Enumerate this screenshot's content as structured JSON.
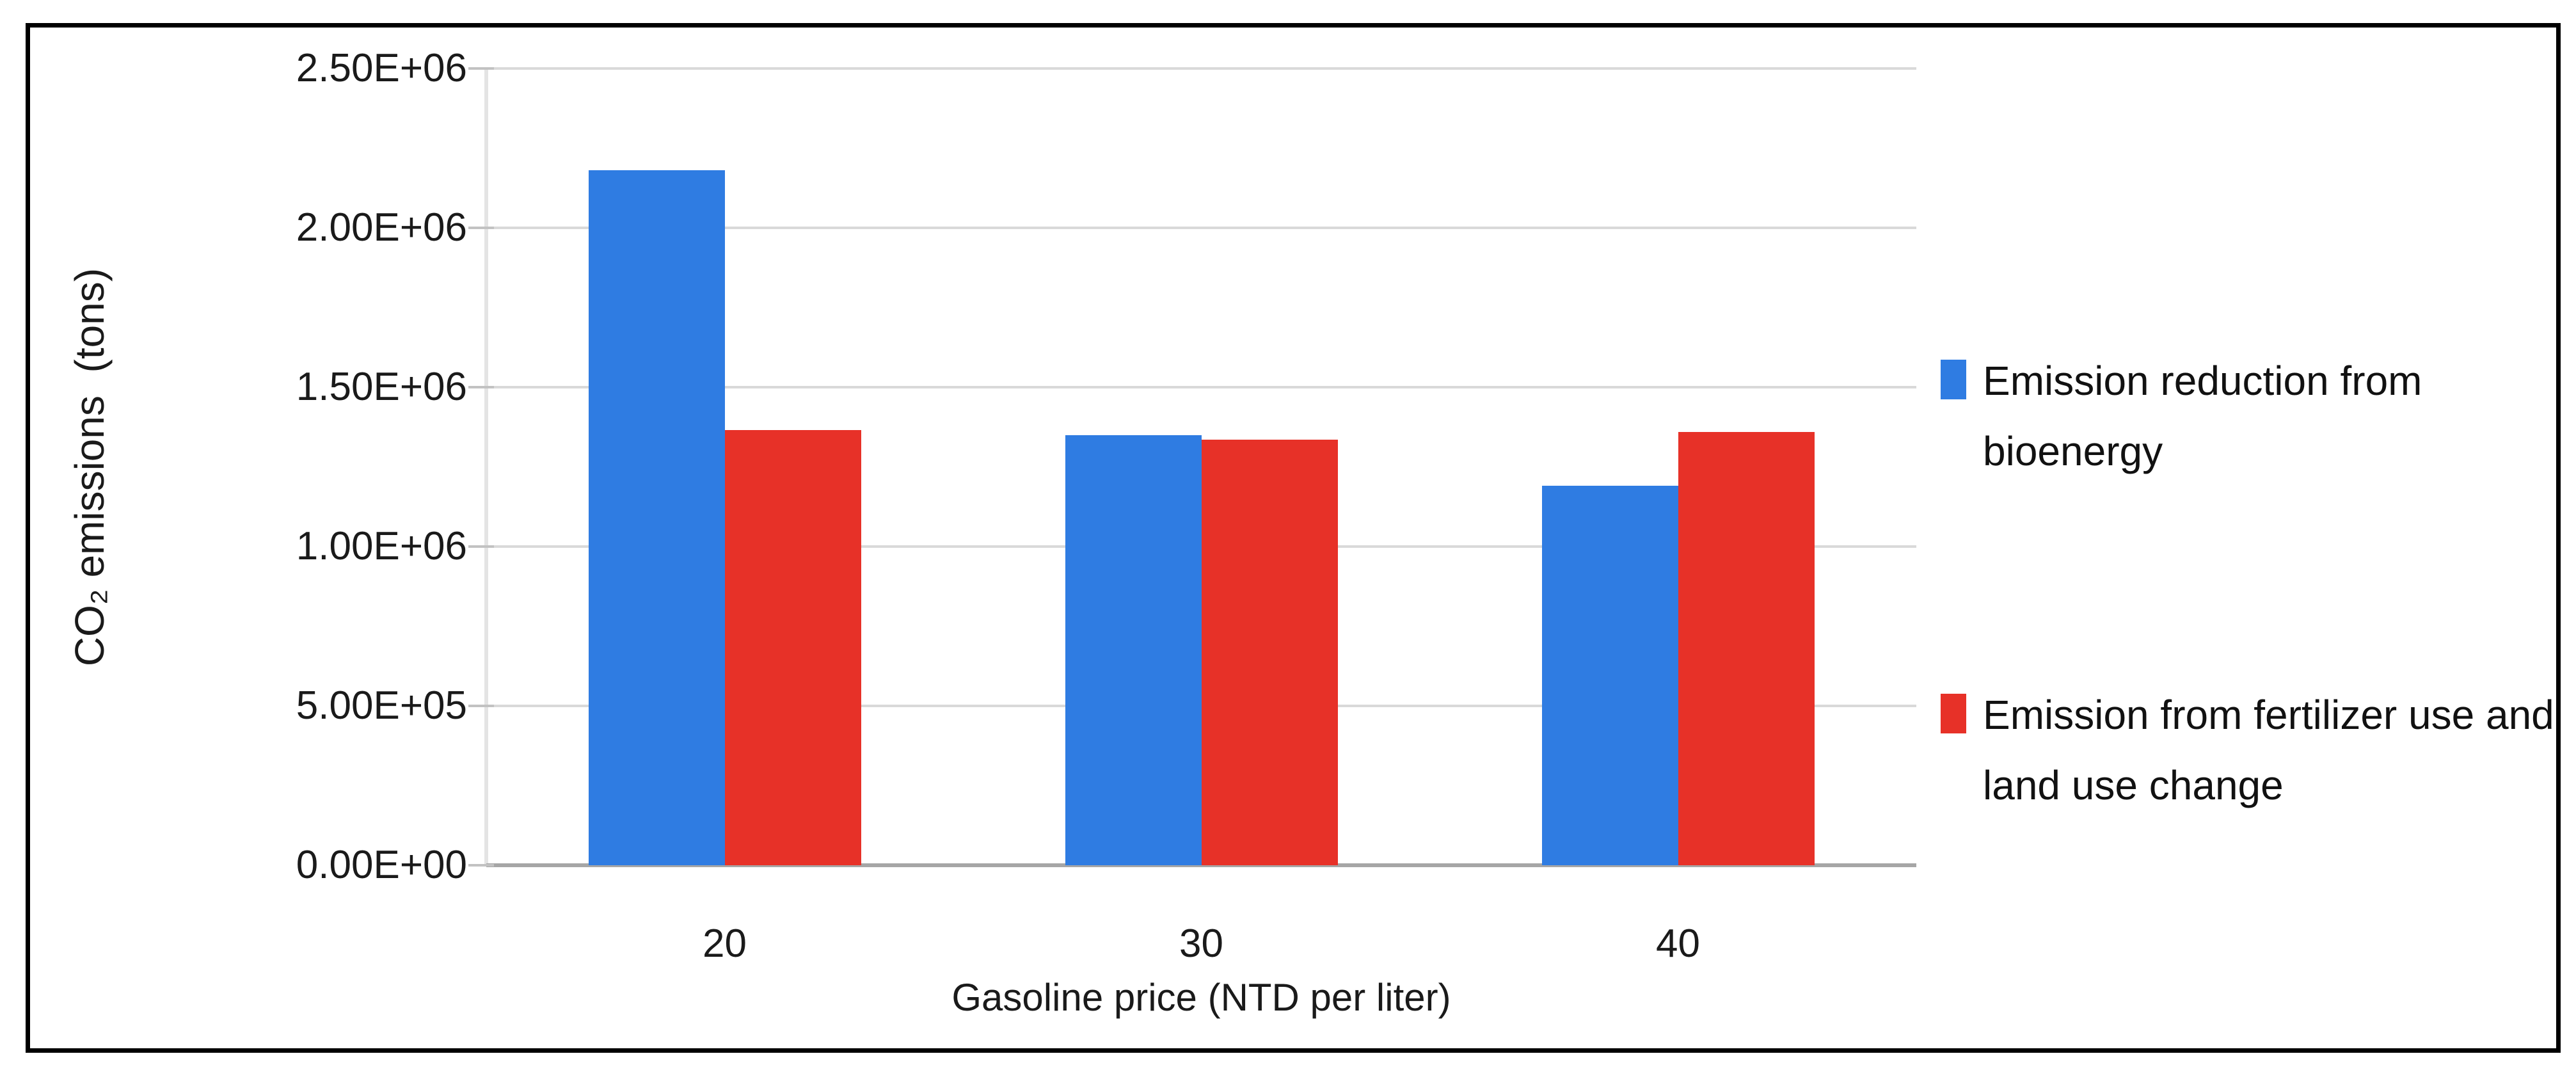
{
  "chart_data": {
    "type": "bar",
    "title": "",
    "categories": [
      "20",
      "30",
      "40"
    ],
    "series": [
      {
        "name": "Emission reduction from bioenergy",
        "color": "#2F7CE2",
        "values": [
          2180000,
          1350000,
          1190000
        ]
      },
      {
        "name": "Emission from fertilizer use and land use change",
        "color": "#E73128",
        "values": [
          1365000,
          1335000,
          1360000
        ]
      }
    ],
    "xlabel": "Gasoline price (NTD per liter)",
    "ylabel": "CO₂ emissions  (tons)",
    "ylim": [
      0,
      2500000
    ],
    "ytick_step": 500000,
    "ytick_labels": [
      "0.00E+00",
      "5.00E+05",
      "1.00E+06",
      "1.50E+06",
      "2.00E+06",
      "2.50E+06"
    ],
    "grid": "horizontal",
    "legend_position": "right",
    "frame_border_color": "#000000"
  }
}
